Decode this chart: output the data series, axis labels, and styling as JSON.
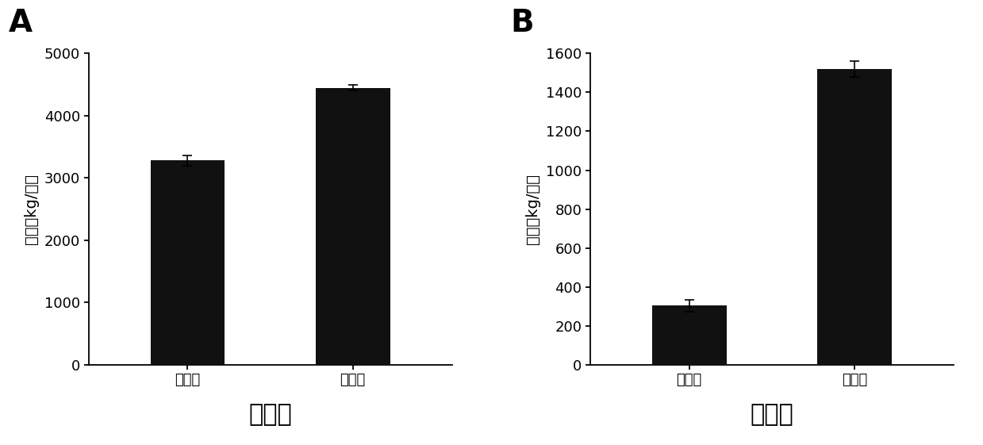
{
  "panel_A": {
    "label": "A",
    "categories": [
      "对照组",
      "处理组"
    ],
    "values": [
      3280,
      4450
    ],
    "errors": [
      80,
      50
    ],
    "ylim": [
      0,
      5000
    ],
    "yticks": [
      0,
      1000,
      2000,
      3000,
      4000,
      5000
    ],
    "ylabel": "产量（kg/亩）",
    "xlabel": "春黄瓜",
    "bar_color": "#111111"
  },
  "panel_B": {
    "label": "B",
    "categories": [
      "对照组",
      "处理组"
    ],
    "values": [
      305,
      1520
    ],
    "errors": [
      30,
      40
    ],
    "ylim": [
      0,
      1600
    ],
    "yticks": [
      0,
      200,
      400,
      600,
      800,
      1000,
      1200,
      1400,
      1600
    ],
    "ylabel": "产量（kg/亩）",
    "xlabel": "秋黄瓜",
    "bar_color": "#111111"
  },
  "background_color": "#ffffff",
  "bar_width": 0.45,
  "tick_fontsize": 13,
  "ylabel_fontsize": 14,
  "xlabel_fontsize": 22,
  "panel_label_fontsize": 28
}
